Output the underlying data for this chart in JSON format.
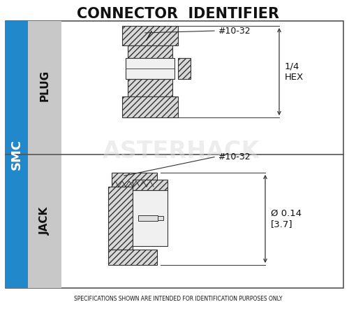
{
  "title": "CONNECTOR  IDENTIFIER",
  "footer": "SPECIFICATIONS SHOWN ARE INTENDED FOR IDENTIFICATION PURPOSES ONLY",
  "smc_label": "SMC",
  "plug_label": "PLUG",
  "jack_label": "JACK",
  "bg_color": "#ffffff",
  "blue_bar_color": "#2288cc",
  "gray_bar_color": "#c8c8c8",
  "plug_annotation": "#10-32",
  "plug_dim": "1/4\nHEX",
  "jack_annotation": "#10-32",
  "jack_dim": "Ø 0.14\n[3.7]",
  "watermark": "ASTERHACK",
  "border_color": "#555555",
  "line_color": "#333333"
}
